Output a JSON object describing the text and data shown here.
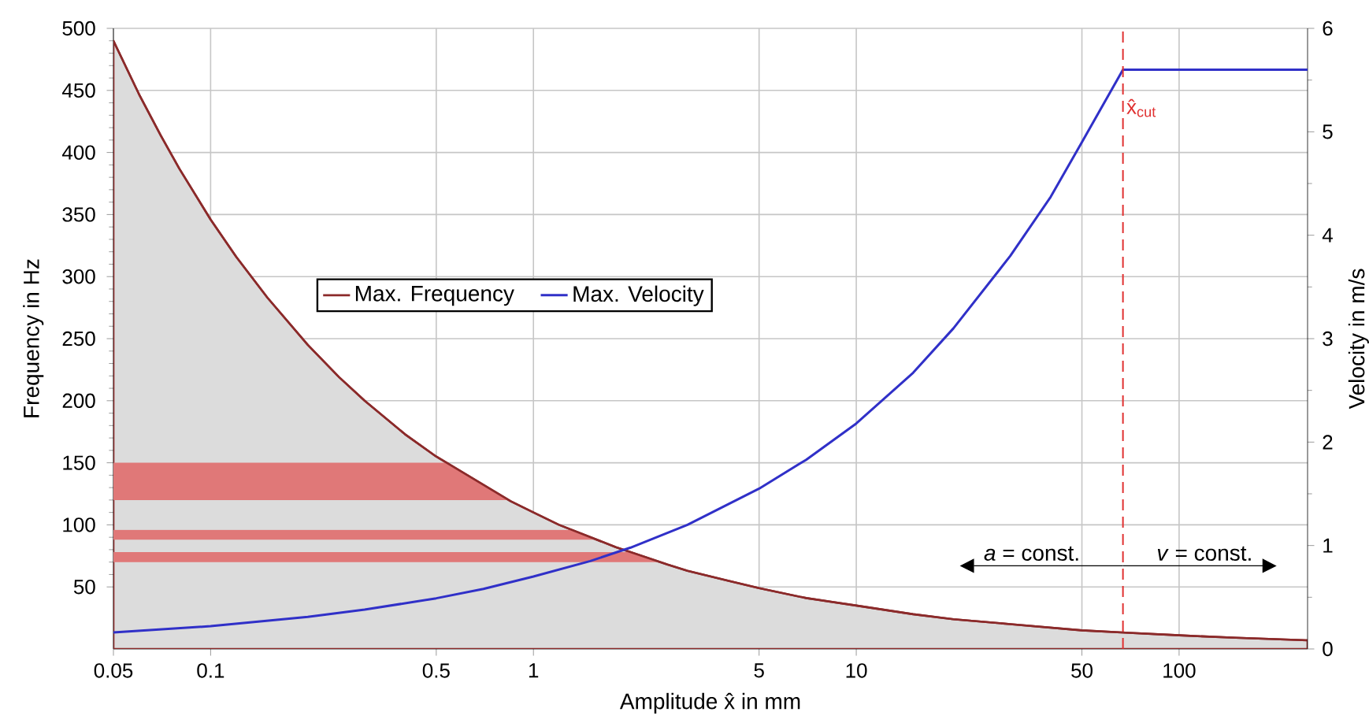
{
  "chart_data": {
    "type": "line",
    "xlabel": "Amplitude x̂ in mm",
    "ylabel": "Frequency in Hz",
    "y2label": "Velocity in m/s",
    "log": "x",
    "xlim": [
      0.05,
      250
    ],
    "xticks": [
      0.05,
      0.1,
      0.5,
      1,
      5,
      10,
      50,
      100
    ],
    "ylim": [
      0,
      500
    ],
    "yticks": [
      50,
      100,
      150,
      200,
      250,
      300,
      350,
      400,
      450,
      500
    ],
    "y2lim": [
      0,
      6
    ],
    "y2ticks": [
      0,
      1,
      2,
      3,
      4,
      5,
      6
    ],
    "grid": true,
    "legend": "left",
    "series": [
      {
        "name": "Max. Frequency",
        "type": "area",
        "color": "#8b2a2a",
        "x": [
          0.05,
          0.06,
          0.07,
          0.08,
          0.1,
          0.12,
          0.15,
          0.2,
          0.25,
          0.3,
          0.4,
          0.5,
          0.85,
          1,
          1.2,
          1.8,
          2.6,
          3,
          4,
          5,
          7,
          10,
          15,
          20,
          30,
          50,
          70,
          100,
          150,
          250
        ],
        "values": [
          490,
          447,
          414,
          387,
          346,
          316,
          283,
          245,
          219,
          200,
          173,
          155,
          119,
          110,
          100,
          82,
          68,
          63,
          55,
          49,
          41,
          35,
          28,
          24,
          20,
          15,
          13,
          11,
          9,
          7
        ]
      },
      {
        "name": "Max. Velocity",
        "axis": "y2",
        "color": "#3030c8",
        "x": [
          0.05,
          0.1,
          0.2,
          0.3,
          0.5,
          0.7,
          1,
          1.5,
          2,
          3,
          5,
          7,
          10,
          15,
          20,
          30,
          40,
          50,
          67,
          250
        ],
        "values": [
          0.16,
          0.22,
          0.31,
          0.38,
          0.49,
          0.58,
          0.7,
          0.85,
          0.98,
          1.2,
          1.55,
          1.83,
          2.18,
          2.67,
          3.1,
          3.8,
          4.37,
          4.9,
          5.6,
          5.6
        ]
      }
    ],
    "bands": [
      {
        "axis": "y",
        "from": 120,
        "to": 150,
        "color": "#e07878"
      },
      {
        "axis": "y",
        "from": 88,
        "to": 96,
        "color": "#e07878"
      },
      {
        "axis": "y",
        "from": 70,
        "to": 78,
        "color": "#e07878"
      }
    ],
    "ref_lines": [
      {
        "axis": "x",
        "value": 67,
        "label": "x̂$_{cut}$",
        "color": "#e03030",
        "line_style": "dashed"
      }
    ],
    "annotations": [
      {
        "text": "*a* = const.",
        "x": 35,
        "y": 67
      },
      {
        "text": "*v* = const.",
        "x": 120,
        "y": 67
      }
    ]
  }
}
